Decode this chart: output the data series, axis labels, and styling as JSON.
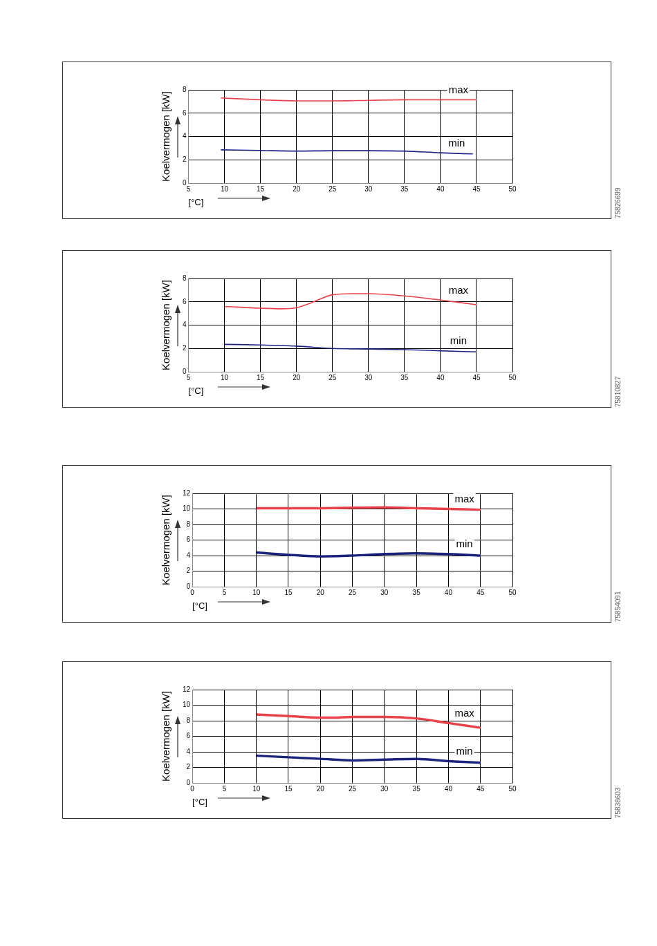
{
  "chart_data": [
    {
      "type": "line",
      "ylabel": "Koelvermogen [kW]",
      "xlabel": "[°C]",
      "xlim": [
        5,
        50
      ],
      "xticks": [
        5,
        10,
        15,
        20,
        25,
        30,
        35,
        40,
        45,
        50
      ],
      "ylim": [
        0,
        8
      ],
      "yticks": [
        0,
        2,
        4,
        6,
        8
      ],
      "grid": true,
      "legend": false,
      "marker": "none",
      "annotations": [
        "75826699"
      ],
      "series": [
        {
          "name": "max",
          "color": "#e8424a",
          "x": [
            9.5,
            15,
            20,
            25,
            30,
            35,
            40,
            45
          ],
          "values": [
            7.3,
            7.15,
            7.05,
            7.05,
            7.1,
            7.15,
            7.15,
            7.15
          ]
        },
        {
          "name": "min",
          "color": "#1a237e",
          "x": [
            9.5,
            15,
            20,
            25,
            30,
            35,
            40,
            44.5
          ],
          "values": [
            2.85,
            2.8,
            2.75,
            2.78,
            2.78,
            2.75,
            2.6,
            2.5
          ]
        }
      ]
    },
    {
      "type": "line",
      "ylabel": "Koelvermogen [kW]",
      "xlabel": "[°C]",
      "xlim": [
        5,
        50
      ],
      "xticks": [
        5,
        10,
        15,
        20,
        25,
        30,
        35,
        40,
        45,
        50
      ],
      "ylim": [
        0,
        8
      ],
      "yticks": [
        0,
        2,
        4,
        6,
        8
      ],
      "grid": true,
      "legend": false,
      "marker": "none",
      "annotations": [
        "75810827"
      ],
      "series": [
        {
          "name": "max",
          "color": "#e8424a",
          "x": [
            10,
            15,
            18,
            20,
            22,
            25,
            28,
            30,
            35,
            40,
            45
          ],
          "values": [
            5.6,
            5.45,
            5.4,
            5.5,
            5.9,
            6.6,
            6.7,
            6.7,
            6.5,
            6.15,
            5.75
          ]
        },
        {
          "name": "min",
          "color": "#1a237e",
          "x": [
            10,
            15,
            20,
            25,
            30,
            35,
            40,
            45
          ],
          "values": [
            2.35,
            2.3,
            2.2,
            2.0,
            1.95,
            1.9,
            1.8,
            1.7
          ]
        }
      ]
    },
    {
      "type": "line",
      "ylabel": "Koelvermogen [kW]",
      "xlabel": "[°C]",
      "xlim": [
        0,
        50
      ],
      "xticks": [
        0,
        5,
        10,
        15,
        20,
        25,
        30,
        35,
        40,
        45,
        50
      ],
      "ylim": [
        0,
        12
      ],
      "yticks": [
        0,
        2,
        4,
        6,
        8,
        10,
        12
      ],
      "grid": true,
      "legend": false,
      "marker": "none",
      "annotations": [
        "75854091"
      ],
      "series": [
        {
          "name": "max",
          "color": "#e8424a",
          "x": [
            10,
            20,
            30,
            35,
            40,
            45
          ],
          "values": [
            10.1,
            10.1,
            10.2,
            10.1,
            10.0,
            9.9
          ]
        },
        {
          "name": "min",
          "color": "#1a237e",
          "x": [
            10,
            15,
            20,
            25,
            30,
            35,
            40,
            45
          ],
          "values": [
            4.4,
            4.1,
            3.9,
            4.0,
            4.2,
            4.3,
            4.2,
            4.0
          ]
        }
      ]
    },
    {
      "type": "line",
      "ylabel": "Koelvermogen [kW]",
      "xlabel": "[°C]",
      "xlim": [
        0,
        50
      ],
      "xticks": [
        0,
        5,
        10,
        15,
        20,
        25,
        30,
        35,
        40,
        45,
        50
      ],
      "ylim": [
        0,
        12
      ],
      "yticks": [
        0,
        2,
        4,
        6,
        8,
        10,
        12
      ],
      "grid": true,
      "legend": false,
      "marker": "none",
      "annotations": [
        "75838603"
      ],
      "series": [
        {
          "name": "max",
          "color": "#e8424a",
          "x": [
            10,
            15,
            20,
            22,
            25,
            30,
            35,
            40,
            45
          ],
          "values": [
            8.8,
            8.6,
            8.4,
            8.4,
            8.5,
            8.5,
            8.3,
            7.7,
            7.1
          ]
        },
        {
          "name": "min",
          "color": "#1a237e",
          "x": [
            10,
            15,
            20,
            25,
            30,
            35,
            40,
            45
          ],
          "values": [
            3.5,
            3.3,
            3.1,
            2.9,
            3.0,
            3.1,
            2.8,
            2.6
          ]
        }
      ]
    }
  ]
}
